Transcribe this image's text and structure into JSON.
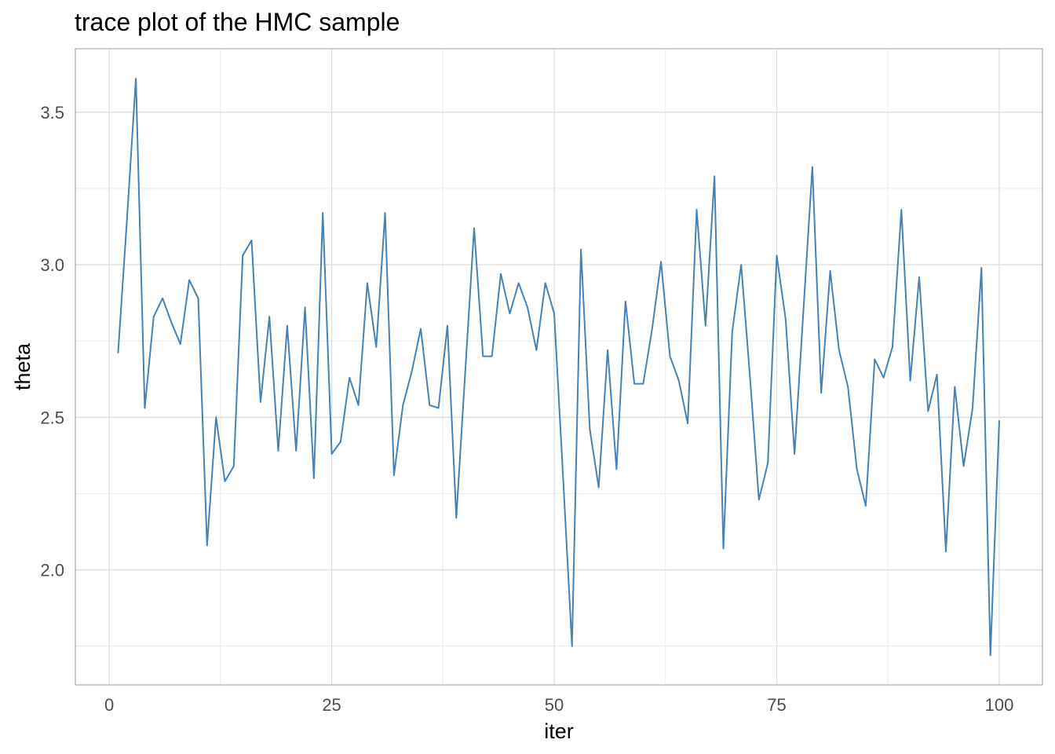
{
  "chart_data": {
    "type": "line",
    "title": "trace plot of the HMC sample",
    "xlabel": "iter",
    "ylabel": "theta",
    "xlim": [
      -3.8,
      104.85
    ],
    "ylim": [
      1.623,
      3.708
    ],
    "x_ticks": [
      0,
      25,
      50,
      75,
      100
    ],
    "x_tick_labels": [
      "0",
      "25",
      "50",
      "75",
      "100"
    ],
    "y_ticks": [
      2.0,
      2.5,
      3.0,
      3.5
    ],
    "y_tick_labels": [
      "2.0",
      "2.5",
      "3.0",
      "3.5"
    ],
    "grid": true,
    "legend": "none",
    "line_color": "#4682B4",
    "x_start": 1,
    "values": [
      2.71,
      3.15,
      3.61,
      2.53,
      2.83,
      2.89,
      2.81,
      2.74,
      2.95,
      2.89,
      2.08,
      2.5,
      2.29,
      2.34,
      3.03,
      3.08,
      2.55,
      2.83,
      2.39,
      2.8,
      2.39,
      2.86,
      2.3,
      3.17,
      2.38,
      2.42,
      2.63,
      2.54,
      2.94,
      2.73,
      3.17,
      2.31,
      2.54,
      2.65,
      2.79,
      2.54,
      2.53,
      2.8,
      2.17,
      2.65,
      3.12,
      2.7,
      2.7,
      2.97,
      2.84,
      2.94,
      2.86,
      2.72,
      2.94,
      2.84,
      2.3,
      1.75,
      3.05,
      2.46,
      2.27,
      2.72,
      2.33,
      2.88,
      2.61,
      2.61,
      2.79,
      3.01,
      2.7,
      2.62,
      2.48,
      3.18,
      2.8,
      3.29,
      2.07,
      2.78,
      3.0,
      2.63,
      2.23,
      2.35,
      3.03,
      2.82,
      2.38,
      2.85,
      3.32,
      2.58,
      2.98,
      2.72,
      2.6,
      2.33,
      2.21,
      2.69,
      2.63,
      2.73,
      3.18,
      2.62,
      2.96,
      2.52,
      2.64,
      2.06,
      2.6,
      2.34,
      2.53,
      2.99,
      1.72,
      2.49
    ]
  }
}
